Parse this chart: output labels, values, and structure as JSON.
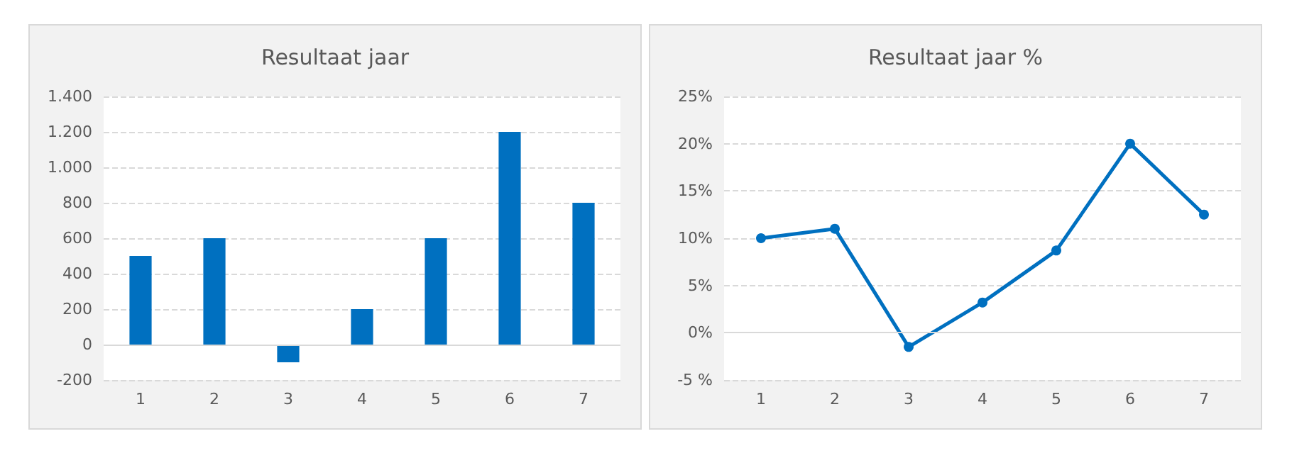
{
  "chart_data": [
    {
      "type": "bar",
      "title": "Resultaat jaar",
      "categories": [
        "1",
        "2",
        "3",
        "4",
        "5",
        "6",
        "7"
      ],
      "values": [
        500,
        600,
        -100,
        200,
        600,
        1200,
        800
      ],
      "color": "#0070c0",
      "ylim": [
        -200,
        1400
      ],
      "yticks": [
        {
          "value": -200,
          "label": "-200"
        },
        {
          "value": 0,
          "label": "0"
        },
        {
          "value": 200,
          "label": "200"
        },
        {
          "value": 400,
          "label": "400"
        },
        {
          "value": 600,
          "label": "600"
        },
        {
          "value": 800,
          "label": "800"
        },
        {
          "value": 1000,
          "label": "1.000"
        },
        {
          "value": 1200,
          "label": "1.200"
        },
        {
          "value": 1400,
          "label": "1.400"
        }
      ],
      "grid": "y"
    },
    {
      "type": "line",
      "title": "Resultaat jaar %",
      "categories": [
        "1",
        "2",
        "3",
        "4",
        "5",
        "6",
        "7"
      ],
      "values": [
        10,
        11,
        -1.5,
        3.2,
        8.7,
        20,
        12.5
      ],
      "color": "#0070c0",
      "ylim": [
        -5,
        25
      ],
      "yticks": [
        {
          "value": -5,
          "label": "-5 %"
        },
        {
          "value": 0,
          "label": "0%"
        },
        {
          "value": 5,
          "label": "5%"
        },
        {
          "value": 10,
          "label": "10%"
        },
        {
          "value": 15,
          "label": "15%"
        },
        {
          "value": 20,
          "label": "20%"
        },
        {
          "value": 25,
          "label": "25%"
        }
      ],
      "grid": "y",
      "marker": "circle",
      "line_style": "solid"
    }
  ]
}
